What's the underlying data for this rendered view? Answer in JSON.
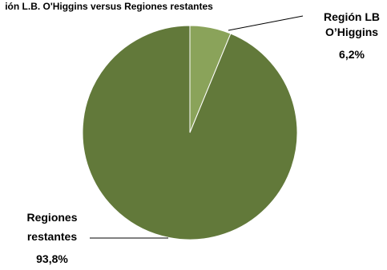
{
  "chart_data": {
    "type": "pie",
    "title": "ión L.B. O'Higgins versus Regiones restantes",
    "slices": [
      {
        "label_lines": [
          "Región LB",
          "O’Higgins"
        ],
        "value_label": "6,2%",
        "value": 6.2,
        "color": "#8aa35a"
      },
      {
        "label_lines": [
          "Regiones",
          "restantes"
        ],
        "value_label": "93,8%",
        "value": 93.8,
        "color": "#62793a"
      }
    ],
    "legend": "none",
    "grid": false
  }
}
